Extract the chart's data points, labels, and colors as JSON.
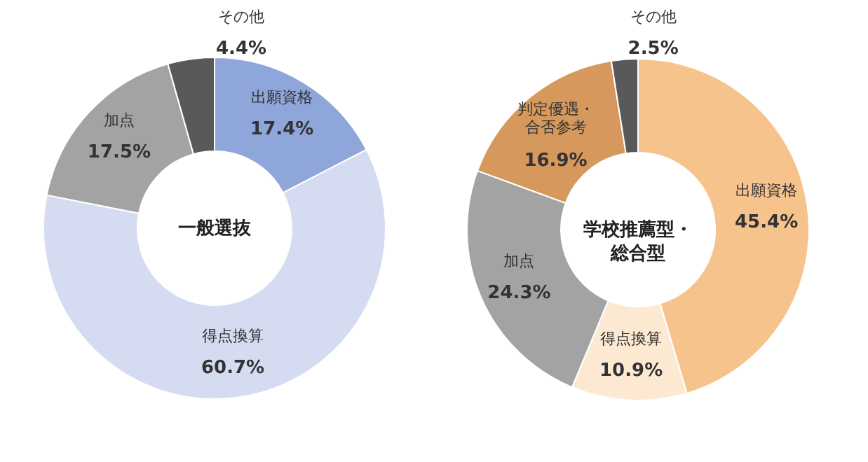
{
  "chart_data": [
    {
      "type": "donut",
      "title": "一般選抜",
      "categories": [
        "出願資格",
        "得点換算",
        "加点",
        "その他"
      ],
      "values": [
        17.4,
        60.7,
        17.5,
        4.4
      ],
      "colors": [
        "#8ea6d9",
        "#d5dcf1",
        "#a3a3a3",
        "#595959"
      ],
      "value_labels": [
        "17.4%",
        "60.7%",
        "17.5%",
        "4.4%"
      ]
    },
    {
      "type": "donut",
      "title": "学校推薦型・総合型",
      "categories": [
        "出願資格",
        "得点換算",
        "加点",
        "判定優遇・合否参考",
        "その他"
      ],
      "values": [
        45.4,
        10.9,
        24.3,
        16.9,
        2.5
      ],
      "colors": [
        "#f6c38c",
        "#fde9d2",
        "#a3a3a3",
        "#d6985c",
        "#595959"
      ],
      "value_labels": [
        "45.4%",
        "10.9%",
        "24.3%",
        "16.9%",
        "2.5%"
      ]
    }
  ]
}
